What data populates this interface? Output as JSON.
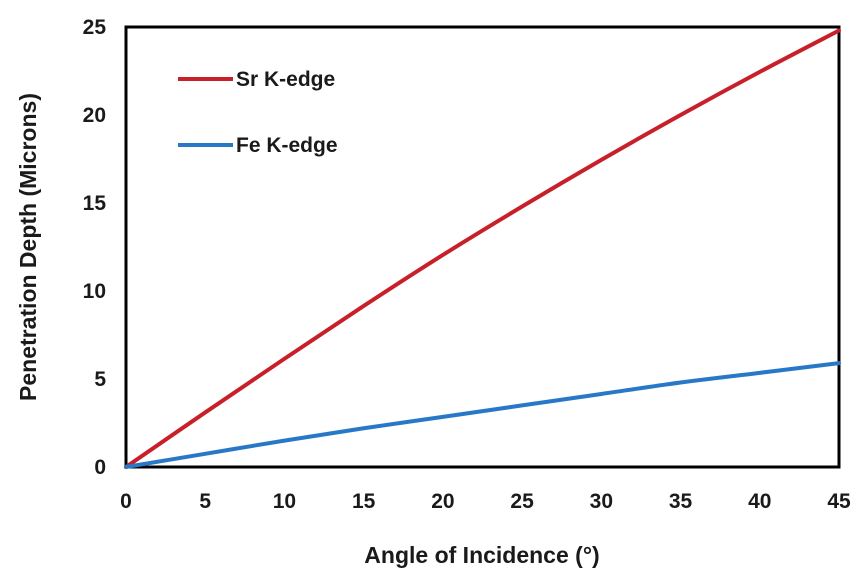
{
  "chart_data": {
    "type": "line",
    "title": "",
    "xlabel": "Angle of Incidence (°)",
    "ylabel": "Penetration Depth (Microns)",
    "xlim": [
      0,
      45
    ],
    "ylim": [
      0,
      25
    ],
    "xticks": [
      "0",
      "5",
      "10",
      "15",
      "20",
      "25",
      "30",
      "35",
      "40",
      "45"
    ],
    "yticks": [
      "0",
      "5",
      "10",
      "15",
      "20",
      "25"
    ],
    "grid": false,
    "legend_position": "top-left",
    "x": [
      0,
      5,
      10,
      15,
      20,
      25,
      30,
      35,
      40,
      45
    ],
    "series": [
      {
        "name": "Sr K-edge",
        "color": "#c8202a",
        "values": [
          0,
          3.1,
          6.15,
          9.15,
          12.05,
          14.8,
          17.45,
          20.0,
          22.45,
          24.8
        ]
      },
      {
        "name": "Fe K-edge",
        "color": "#2878c8",
        "values": [
          0,
          0.75,
          1.5,
          2.2,
          2.85,
          3.5,
          4.15,
          4.8,
          5.35,
          5.9
        ]
      }
    ]
  }
}
